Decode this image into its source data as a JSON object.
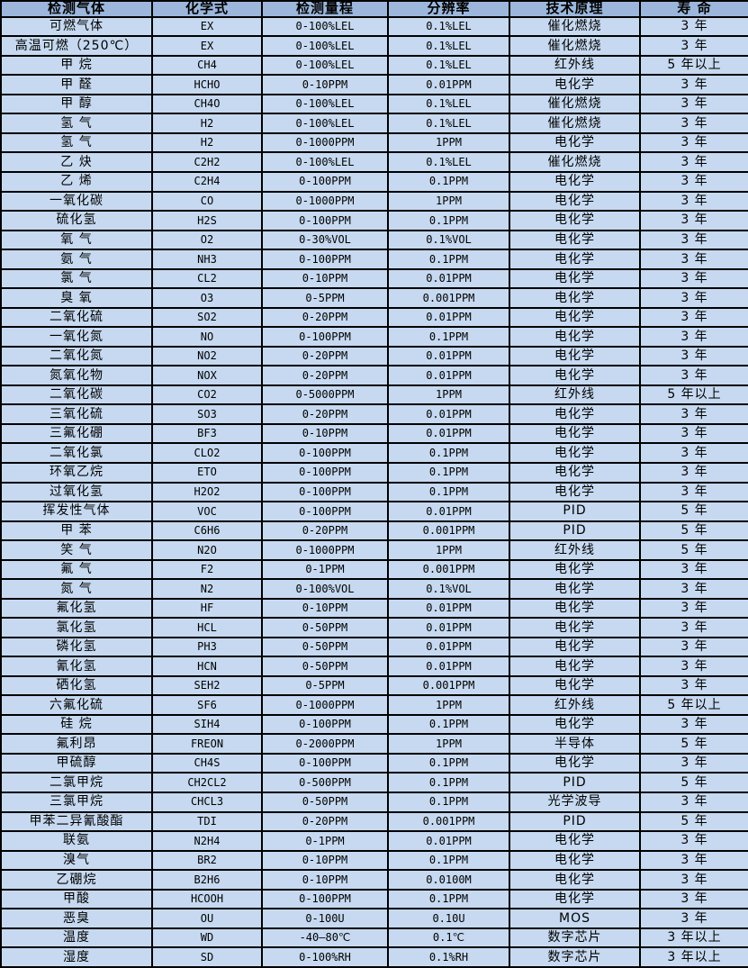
{
  "table": {
    "headers": [
      "检测气体",
      "化学式",
      "检测量程",
      "分辨率",
      "技术原理",
      "寿 命"
    ],
    "rows": [
      [
        "可燃气体",
        "EX",
        "0-100%LEL",
        "0.1%LEL",
        "催化燃烧",
        "3 年"
      ],
      [
        "高温可燃（250℃）",
        "EX",
        "0-100%LEL",
        "0.1%LEL",
        "催化燃烧",
        "3 年"
      ],
      [
        "甲 烷",
        "CH4",
        "0-100%LEL",
        "0.1%LEL",
        "红外线",
        "5 年以上"
      ],
      [
        "甲 醛",
        "HCHO",
        "0-10PPM",
        "0.01PPM",
        "电化学",
        "3 年"
      ],
      [
        "甲 醇",
        "CH4O",
        "0-100%LEL",
        "0.1%LEL",
        "催化燃烧",
        "3 年"
      ],
      [
        "氢 气",
        "H2",
        "0-100%LEL",
        "0.1%LEL",
        "催化燃烧",
        "3 年"
      ],
      [
        "氢 气",
        "H2",
        "0-1000PPM",
        "1PPM",
        "电化学",
        "3 年"
      ],
      [
        "乙 炔",
        "C2H2",
        "0-100%LEL",
        "0.1%LEL",
        "催化燃烧",
        "3 年"
      ],
      [
        "乙 烯",
        "C2H4",
        "0-100PPM",
        "0.1PPM",
        "电化学",
        "3 年"
      ],
      [
        "一氧化碳",
        "CO",
        "0-1000PPM",
        "1PPM",
        "电化学",
        "3 年"
      ],
      [
        "硫化氢",
        "H2S",
        "0-100PPM",
        "0.1PPM",
        "电化学",
        "3 年"
      ],
      [
        "氧 气",
        "O2",
        "0-30%VOL",
        "0.1%VOL",
        "电化学",
        "3 年"
      ],
      [
        "氨 气",
        "NH3",
        "0-100PPM",
        "0.1PPM",
        "电化学",
        "3 年"
      ],
      [
        "氯 气",
        "CL2",
        "0-10PPM",
        "0.01PPM",
        "电化学",
        "3 年"
      ],
      [
        "臭 氧",
        "O3",
        "0-5PPM",
        "0.001PPM",
        "电化学",
        "3 年"
      ],
      [
        "二氧化硫",
        "SO2",
        "0-20PPM",
        "0.01PPM",
        "电化学",
        "3 年"
      ],
      [
        "一氧化氮",
        "NO",
        "0-100PPM",
        "0.1PPM",
        "电化学",
        "3 年"
      ],
      [
        "二氧化氮",
        "NO2",
        "0-20PPM",
        "0.01PPM",
        "电化学",
        "3 年"
      ],
      [
        "氮氧化物",
        "NOX",
        "0-20PPM",
        "0.01PPM",
        "电化学",
        "3 年"
      ],
      [
        "二氧化碳",
        "CO2",
        "0-5000PPM",
        "1PPM",
        "红外线",
        "5 年以上"
      ],
      [
        "三氧化硫",
        "SO3",
        "0-20PPM",
        "0.01PPM",
        "电化学",
        "3 年"
      ],
      [
        "三氟化硼",
        "BF3",
        "0-10PPM",
        "0.01PPM",
        "电化学",
        "3 年"
      ],
      [
        "二氧化氯",
        "CLO2",
        "0-100PPM",
        "0.1PPM",
        "电化学",
        "3 年"
      ],
      [
        "环氧乙烷",
        "ETO",
        "0-100PPM",
        "0.1PPM",
        "电化学",
        "3 年"
      ],
      [
        "过氧化氢",
        "H2O2",
        "0-100PPM",
        "0.1PPM",
        "电化学",
        "3 年"
      ],
      [
        "挥发性气体",
        "VOC",
        "0-100PPM",
        "0.01PPM",
        "PID",
        "5 年"
      ],
      [
        "甲 苯",
        "C6H6",
        "0-20PPM",
        "0.001PPM",
        "PID",
        "5 年"
      ],
      [
        "笑 气",
        "N2O",
        "0-1000PPM",
        "1PPM",
        "红外线",
        "5 年"
      ],
      [
        "氟 气",
        "F2",
        "0-1PPM",
        "0.001PPM",
        "电化学",
        "3 年"
      ],
      [
        "氮 气",
        "N2",
        "0-100%VOL",
        "0.1%VOL",
        "电化学",
        "3 年"
      ],
      [
        "氟化氢",
        "HF",
        "0-10PPM",
        "0.01PPM",
        "电化学",
        "3 年"
      ],
      [
        "氯化氢",
        "HCL",
        "0-50PPM",
        "0.01PPM",
        "电化学",
        "3 年"
      ],
      [
        "磷化氢",
        "PH3",
        "0-50PPM",
        "0.01PPM",
        "电化学",
        "3 年"
      ],
      [
        "氰化氢",
        "HCN",
        "0-50PPM",
        "0.01PPM",
        "电化学",
        "3 年"
      ],
      [
        "硒化氢",
        "SEH2",
        "0-5PPM",
        "0.001PPM",
        "电化学",
        "3 年"
      ],
      [
        "六氟化硫",
        "SF6",
        "0-1000PPM",
        "1PPM",
        "红外线",
        "5 年以上"
      ],
      [
        "硅 烷",
        "SIH4",
        "0-100PPM",
        "0.1PPM",
        "电化学",
        "3 年"
      ],
      [
        "氟利昂",
        "FREON",
        "0-2000PPM",
        "1PPM",
        "半导体",
        "5 年"
      ],
      [
        "甲硫醇",
        "CH4S",
        "0-100PPM",
        "0.1PPM",
        "电化学",
        "3 年"
      ],
      [
        "二氯甲烷",
        "CH2CL2",
        "0-500PPM",
        "0.1PPM",
        "PID",
        "5 年"
      ],
      [
        "三氯甲烷",
        "CHCL3",
        "0-50PPM",
        "0.1PPM",
        "光学波导",
        "3 年"
      ],
      [
        "甲苯二异氰酸酯",
        "TDI",
        "0-20PPM",
        "0.001PPM",
        "PID",
        "5 年"
      ],
      [
        "联氨",
        "N2H4",
        "0-1PPM",
        "0.01PPM",
        "电化学",
        "3 年"
      ],
      [
        "溴气",
        "BR2",
        "0-10PPM",
        "0.1PPM",
        "电化学",
        "3 年"
      ],
      [
        "乙硼烷",
        "B2H6",
        "0-10PPM",
        "0.0100M",
        "电化学",
        "3 年"
      ],
      [
        "甲酸",
        "HCOOH",
        "0-100PPM",
        "0.1PPM",
        "电化学",
        "3 年"
      ],
      [
        "恶臭",
        "OU",
        "0-100U",
        "0.10U",
        "MOS",
        "3 年"
      ],
      [
        "温度",
        "WD",
        "-40—80℃",
        "0.1℃",
        "数字芯片",
        "3 年以上"
      ],
      [
        "湿度",
        "SD",
        "0-100%RH",
        "0.1%RH",
        "数字芯片",
        "3 年以上"
      ]
    ],
    "colors": {
      "header_bg": "#9cb7db",
      "row_bg": "#c6d9f0",
      "border": "#000000",
      "text": "#000000"
    }
  }
}
